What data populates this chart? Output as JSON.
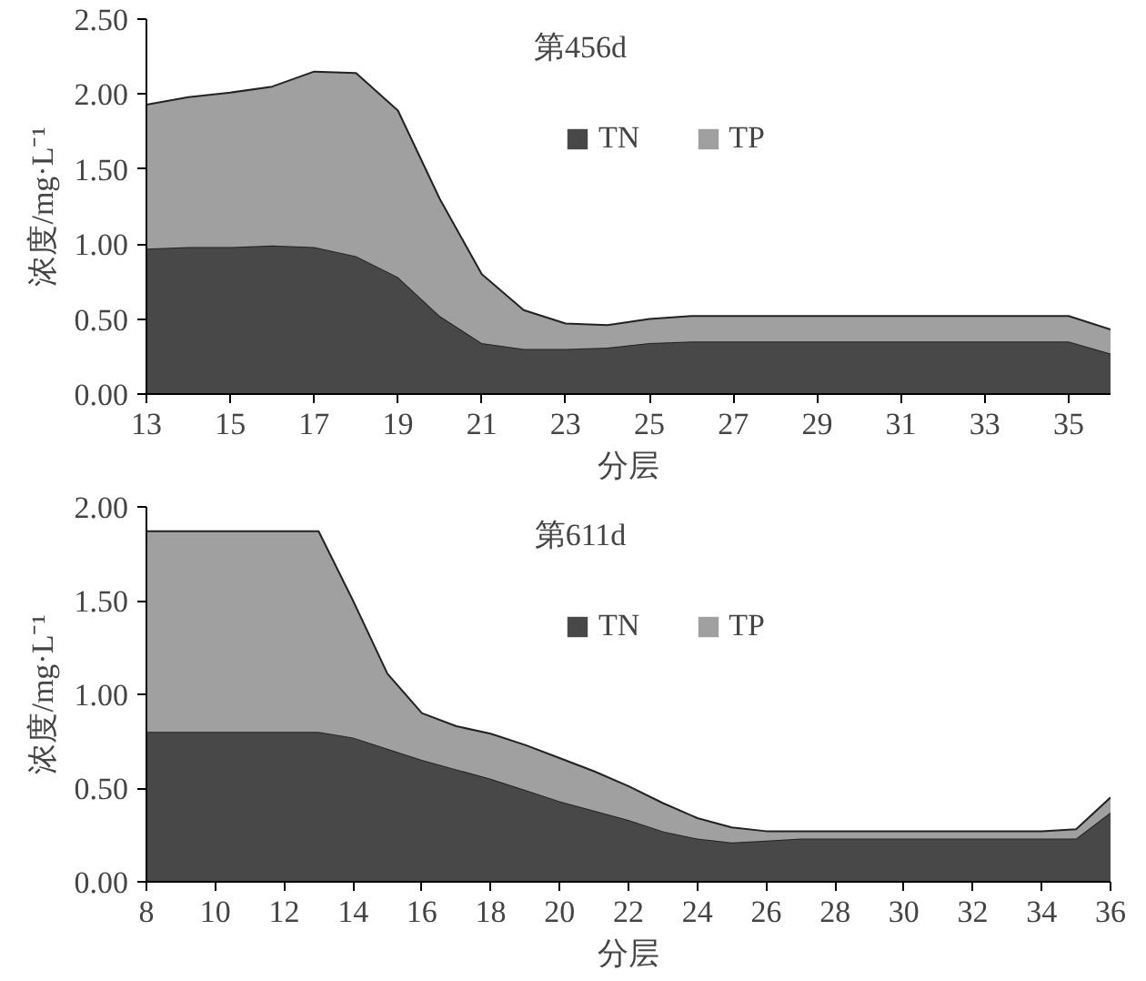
{
  "chart_data": [
    {
      "type": "area",
      "stacked": true,
      "title": "第456d",
      "xlabel": "分层",
      "ylabel": "浓度/mg·L⁻¹",
      "x": [
        13,
        14,
        15,
        16,
        17,
        18,
        19,
        20,
        21,
        22,
        23,
        24,
        25,
        26,
        27,
        28,
        29,
        30,
        31,
        32,
        33,
        34,
        35,
        36
      ],
      "xlim": [
        13,
        36
      ],
      "xticks": [
        13,
        15,
        17,
        19,
        21,
        23,
        25,
        27,
        29,
        31,
        33,
        35
      ],
      "ylim": [
        0,
        2.5
      ],
      "yticks": [
        {
          "value": 0,
          "label": "0.00"
        },
        {
          "value": 0.5,
          "label": "0.50"
        },
        {
          "value": 1,
          "label": "1.00"
        },
        {
          "value": 1.5,
          "label": "1.50"
        },
        {
          "value": 2,
          "label": "2.00"
        },
        {
          "value": 2.5,
          "label": "2.50"
        }
      ],
      "legend": "top right",
      "grid": false,
      "series": [
        {
          "name": "TN",
          "color": "#484848",
          "values": [
            0.97,
            0.98,
            0.98,
            0.99,
            0.98,
            0.92,
            0.78,
            0.52,
            0.34,
            0.3,
            0.3,
            0.31,
            0.34,
            0.35,
            0.35,
            0.35,
            0.35,
            0.35,
            0.35,
            0.35,
            0.35,
            0.35,
            0.35,
            0.27
          ]
        },
        {
          "name": "TP",
          "color": "#a0a0a0",
          "values": [
            0.96,
            1.0,
            1.03,
            1.06,
            1.17,
            1.22,
            1.11,
            0.78,
            0.46,
            0.26,
            0.17,
            0.15,
            0.16,
            0.17,
            0.17,
            0.17,
            0.17,
            0.17,
            0.17,
            0.17,
            0.17,
            0.17,
            0.17,
            0.16
          ]
        }
      ]
    },
    {
      "type": "area",
      "stacked": true,
      "title": "第611d",
      "xlabel": "分层",
      "ylabel": "浓度/mg·L⁻¹",
      "x": [
        8,
        9,
        10,
        11,
        12,
        13,
        14,
        15,
        16,
        17,
        18,
        19,
        20,
        21,
        22,
        23,
        24,
        25,
        26,
        27,
        28,
        29,
        30,
        31,
        32,
        33,
        34,
        35,
        36
      ],
      "xlim": [
        8,
        36
      ],
      "xticks": [
        8,
        10,
        12,
        14,
        16,
        18,
        20,
        22,
        24,
        26,
        28,
        30,
        32,
        34,
        36
      ],
      "ylim": [
        0,
        2
      ],
      "yticks": [
        {
          "value": 0,
          "label": "0.00"
        },
        {
          "value": 0.5,
          "label": "0.50"
        },
        {
          "value": 1,
          "label": "1.00"
        },
        {
          "value": 1.5,
          "label": "1.50"
        },
        {
          "value": 2,
          "label": "2.00"
        }
      ],
      "legend": "top right",
      "grid": false,
      "series": [
        {
          "name": "TN",
          "color": "#484848",
          "values": [
            0.8,
            0.8,
            0.8,
            0.8,
            0.8,
            0.8,
            0.77,
            0.71,
            0.65,
            0.6,
            0.55,
            0.49,
            0.43,
            0.38,
            0.33,
            0.27,
            0.23,
            0.21,
            0.22,
            0.23,
            0.23,
            0.23,
            0.23,
            0.23,
            0.23,
            0.23,
            0.23,
            0.23,
            0.37
          ]
        },
        {
          "name": "TP",
          "color": "#a0a0a0",
          "values": [
            1.07,
            1.07,
            1.07,
            1.07,
            1.07,
            1.07,
            0.73,
            0.4,
            0.25,
            0.23,
            0.24,
            0.24,
            0.23,
            0.21,
            0.18,
            0.15,
            0.11,
            0.08,
            0.05,
            0.04,
            0.04,
            0.04,
            0.04,
            0.04,
            0.04,
            0.04,
            0.04,
            0.05,
            0.08
          ]
        }
      ]
    }
  ]
}
